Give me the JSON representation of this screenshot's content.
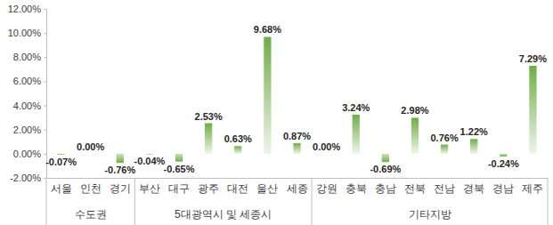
{
  "chart_data": {
    "type": "bar",
    "categories": [
      "서울",
      "인천",
      "경기",
      "부산",
      "대구",
      "광주",
      "대전",
      "울산",
      "세종",
      "강원",
      "충북",
      "충남",
      "전북",
      "전남",
      "경북",
      "경남",
      "제주"
    ],
    "values": [
      -0.07,
      0.0,
      -0.76,
      -0.04,
      -0.65,
      2.53,
      0.63,
      9.68,
      0.87,
      0.0,
      3.24,
      -0.69,
      2.98,
      0.76,
      1.22,
      -0.24,
      7.29
    ],
    "value_labels": [
      "-0.07%",
      "0.00%",
      "-0.76%",
      "-0.04%",
      "-0.65%",
      "2.53%",
      "0.63%",
      "9.68%",
      "0.87%",
      "0.00%",
      "3.24%",
      "-0.69%",
      "2.98%",
      "0.76%",
      "1.22%",
      "-0.24%",
      "7.29%"
    ],
    "data_labels": true,
    "color": "#70ad47",
    "grid": false,
    "ylim": [
      -2,
      12
    ],
    "yticks": [
      {
        "value": -2,
        "label": "-2.00%"
      },
      {
        "value": 0,
        "label": "0.00%"
      },
      {
        "value": 2,
        "label": "2.00%"
      },
      {
        "value": 4,
        "label": "4.00%"
      },
      {
        "value": 6,
        "label": "6.00%"
      },
      {
        "value": 8,
        "label": "8.00%"
      },
      {
        "value": 10,
        "label": "10.00%"
      },
      {
        "value": 12,
        "label": "12.00%"
      }
    ],
    "groups": [
      {
        "name": "수도권",
        "count": 3
      },
      {
        "name": "5대광역시 및 세종시",
        "count": 6
      },
      {
        "name": "기타지방",
        "count": 8
      }
    ]
  }
}
